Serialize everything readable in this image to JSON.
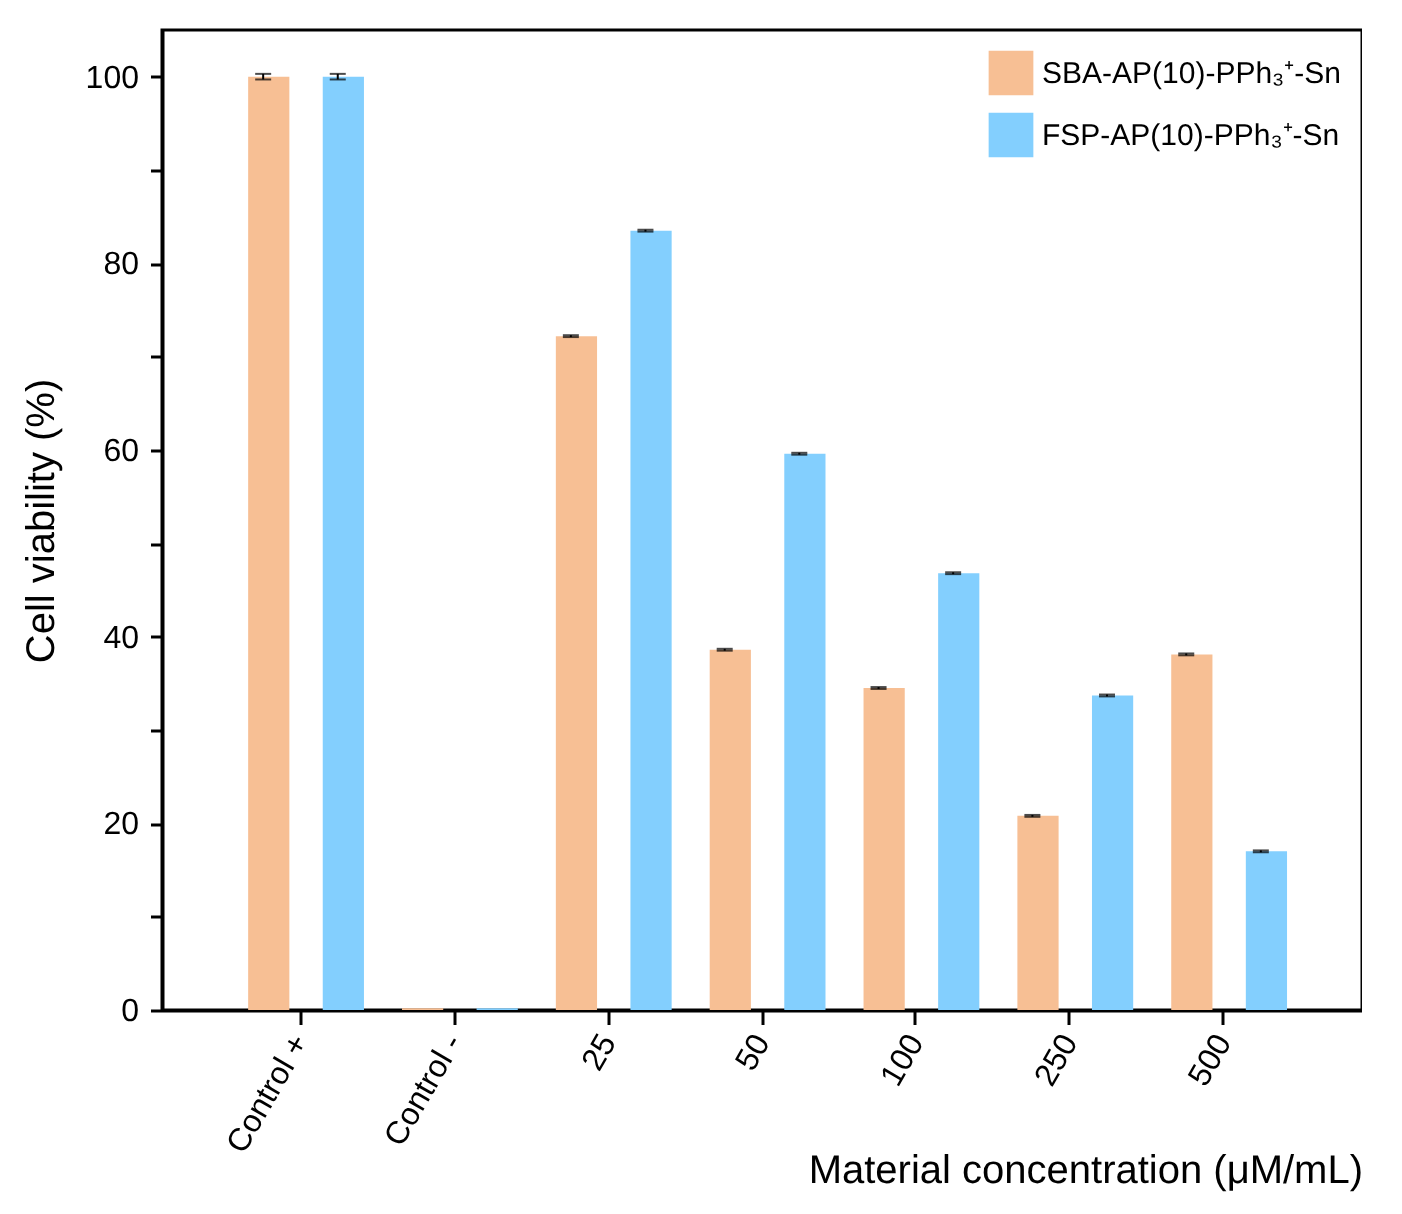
{
  "chart_data": {
    "type": "bar",
    "xlabel": "Material concentration (μM/mL)",
    "ylabel": "Cell viability (%)",
    "categories": [
      "Control +",
      "Control -",
      "25",
      "50",
      "100",
      "250",
      "500"
    ],
    "series": [
      {
        "name": "SBA-AP(10)-PPh₃⁺-Sn",
        "color": "#f7bf94",
        "values": [
          100,
          0.2,
          72.2,
          38.6,
          34.5,
          20.8,
          38.1
        ],
        "errors": [
          0.3,
          null,
          0.1,
          0.1,
          0.1,
          0.1,
          0.1
        ]
      },
      {
        "name": "FSP-AP(10)-PPh₃⁺-Sn",
        "color": "#83cffe",
        "values": [
          100,
          0.2,
          83.5,
          59.6,
          46.8,
          33.7,
          17.0
        ],
        "errors": [
          0.3,
          null,
          0.1,
          0.1,
          0.1,
          0.1,
          0.1
        ]
      }
    ],
    "ylim": [
      0,
      105
    ],
    "yticks": [
      0,
      {
        "value": 10,
        "label": null
      },
      20,
      {
        "value": 30,
        "label": null
      },
      40,
      {
        "value": 50,
        "label": null
      },
      60,
      {
        "value": 70,
        "label": null
      },
      80,
      {
        "value": 90,
        "label": null
      },
      100
    ],
    "legend": "top right",
    "grid": false
  }
}
